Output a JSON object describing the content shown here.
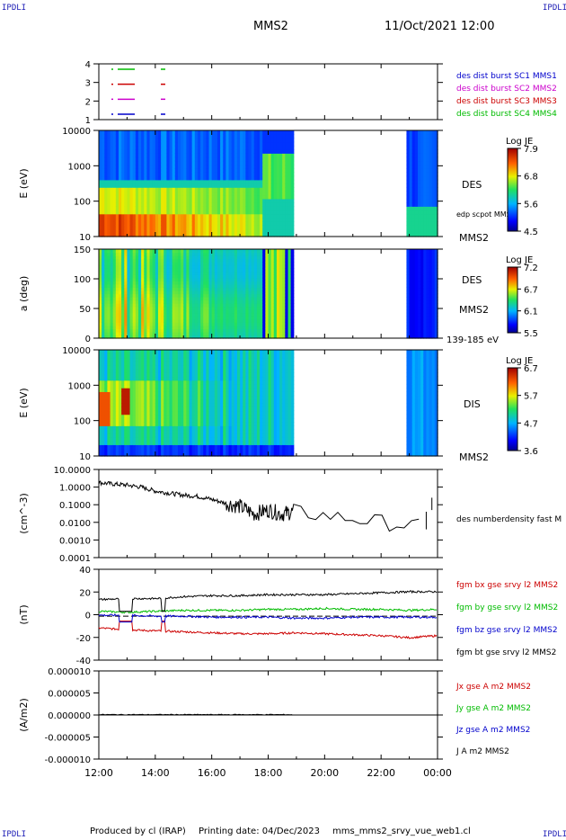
{
  "corners": {
    "tl": "IPDLI",
    "tr": "IPDLI",
    "bl": "IPDLI",
    "br": "IPDLI"
  },
  "header": {
    "spacecraft": "MMS2",
    "datetime": "11/Oct/2021 12:00"
  },
  "footer": {
    "produced": "Produced by cl (IRAP)",
    "printing": "Printing date: 04/Dec/2023",
    "file": "mms_mms2_srvy_vue_web1.cl"
  },
  "colors": {
    "sc1": "#0000cc",
    "sc2": "#cc00cc",
    "sc3": "#cc0000",
    "sc4": "#00bb00",
    "bx": "#cc0000",
    "by": "#00bb00",
    "bz": "#0000cc",
    "bt": "#000000"
  },
  "chart_data": [
    {
      "type": "table",
      "panel": "availability",
      "yticks": [
        "4",
        "3",
        "2",
        "1"
      ],
      "legend": [
        {
          "label": "des dist burst SC1 MMS1",
          "color": "#0000cc"
        },
        {
          "label": "des dist burst SC2 MMS2",
          "color": "#cc00cc"
        },
        {
          "label": "des dist burst SC3 MMS3",
          "color": "#cc0000"
        },
        {
          "label": "des dist burst SC4 MMS4",
          "color": "#00bb00"
        }
      ]
    },
    {
      "type": "heatmap",
      "panel": "des-energy",
      "ylabel": "E (eV)",
      "yticks": [
        "10000",
        "1000",
        "100",
        "10"
      ],
      "log_y": true,
      "ylim": [
        10,
        30000
      ],
      "label": "DES",
      "sublabel": "MMS2",
      "overlay": "edp scpot MMS2",
      "colorbar": {
        "title": "Log JE",
        "ticks": [
          "7.9",
          "6.8",
          "5.6",
          "4.5"
        ],
        "range": [
          4.5,
          7.9
        ]
      },
      "data_gaps_hours": [
        [
          18.9,
          22.9
        ]
      ]
    },
    {
      "type": "heatmap",
      "panel": "des-pitch",
      "ylabel": "a (deg)",
      "yticks": [
        "150",
        "100",
        "50",
        "0"
      ],
      "ylim": [
        0,
        180
      ],
      "label": "DES",
      "sublabel": "MMS2",
      "range_label": "139-185 eV",
      "colorbar": {
        "title": "Log JE",
        "ticks": [
          "7.2",
          "6.7",
          "6.1",
          "5.5"
        ],
        "range": [
          5.5,
          7.2
        ]
      },
      "data_gaps_hours": [
        [
          18.9,
          22.9
        ]
      ]
    },
    {
      "type": "heatmap",
      "panel": "dis-energy",
      "ylabel": "E (eV)",
      "yticks": [
        "10000",
        "1000",
        "100",
        "10"
      ],
      "log_y": true,
      "ylim": [
        10,
        30000
      ],
      "label": "DIS",
      "sublabel": "MMS2",
      "colorbar": {
        "title": "Log JE",
        "ticks": [
          "6.7",
          "5.7",
          "4.7",
          "3.6"
        ],
        "range": [
          3.6,
          6.7
        ]
      },
      "data_gaps_hours": [
        [
          18.9,
          22.9
        ]
      ]
    },
    {
      "type": "line",
      "panel": "density",
      "ylabel": "(cm^-3)",
      "yticks": [
        "10.0000",
        "1.0000",
        "0.1000",
        "0.0100",
        "0.0010",
        "0.0001"
      ],
      "log_y": true,
      "ylim": [
        0.0001,
        10
      ],
      "series": [
        {
          "name": "des numberdensity fast M",
          "x": [
            12.0,
            12.5,
            13.0,
            13.5,
            14.0,
            14.5,
            15.0,
            15.5,
            16.0,
            16.5,
            17.0,
            17.5,
            18.0,
            18.5,
            18.9,
            23.6,
            23.8
          ],
          "y": [
            1.8,
            1.5,
            1.3,
            1.0,
            0.6,
            0.45,
            0.35,
            0.3,
            0.2,
            0.12,
            0.08,
            0.03,
            0.05,
            0.03,
            0.04,
            0.005,
            0.08
          ]
        }
      ]
    },
    {
      "type": "line",
      "panel": "fgm",
      "ylabel": "(nT)",
      "yticks": [
        "40",
        "20",
        "0",
        "-20",
        "-40"
      ],
      "ylim": [
        -45,
        48
      ],
      "x": [
        12,
        13,
        14,
        15,
        16,
        17,
        18,
        19,
        20,
        21,
        22,
        23,
        24
      ],
      "series": [
        {
          "name": "fgm bx gse srvy l2 MMS2",
          "color": "#cc0000",
          "values": [
            -12,
            -14,
            -15,
            -16,
            -17,
            -18,
            -18,
            -17,
            -18,
            -19,
            -20,
            -22,
            -20
          ]
        },
        {
          "name": "fgm by gse srvy l2 MMS2",
          "color": "#00bb00",
          "values": [
            5,
            4,
            5,
            6,
            6,
            6,
            7,
            7,
            8,
            7,
            7,
            6,
            7
          ]
        },
        {
          "name": "fgm bz gse srvy l2 MMS2",
          "color": "#0000cc",
          "values": [
            1,
            1,
            0,
            0,
            -1,
            -1,
            -1,
            -2,
            -2,
            -1,
            -1,
            -1,
            -1
          ]
        },
        {
          "name": "fgm bt gse srvy l2 MMS2",
          "color": "#000000",
          "values": [
            17,
            18,
            18,
            20,
            21,
            21,
            22,
            22,
            22,
            23,
            24,
            25,
            25
          ]
        }
      ]
    },
    {
      "type": "line",
      "panel": "current",
      "ylabel": "(A/m2)",
      "yticks": [
        "0.000010",
        "0.000005",
        "0.000000",
        "-0.000005",
        "-0.000010"
      ],
      "ylim": [
        -1e-05,
        1e-05
      ],
      "series": [
        {
          "name": "Jx gse A m2 MMS2",
          "color": "#cc0000"
        },
        {
          "name": "Jy gse A m2 MMS2",
          "color": "#00bb00"
        },
        {
          "name": "Jz gse A m2 MMS2",
          "color": "#0000cc"
        },
        {
          "name": "J A m2 MMS2",
          "color": "#000000"
        }
      ],
      "x": [
        12,
        13,
        14,
        15,
        16,
        17,
        18,
        19
      ],
      "values": [
        0,
        0,
        0,
        0,
        0,
        0,
        0,
        0
      ]
    }
  ],
  "x_axis": {
    "ticks": [
      "12:00",
      "14:00",
      "16:00",
      "18:00",
      "20:00",
      "22:00",
      "00:00"
    ],
    "range_hours": [
      12,
      24
    ]
  }
}
